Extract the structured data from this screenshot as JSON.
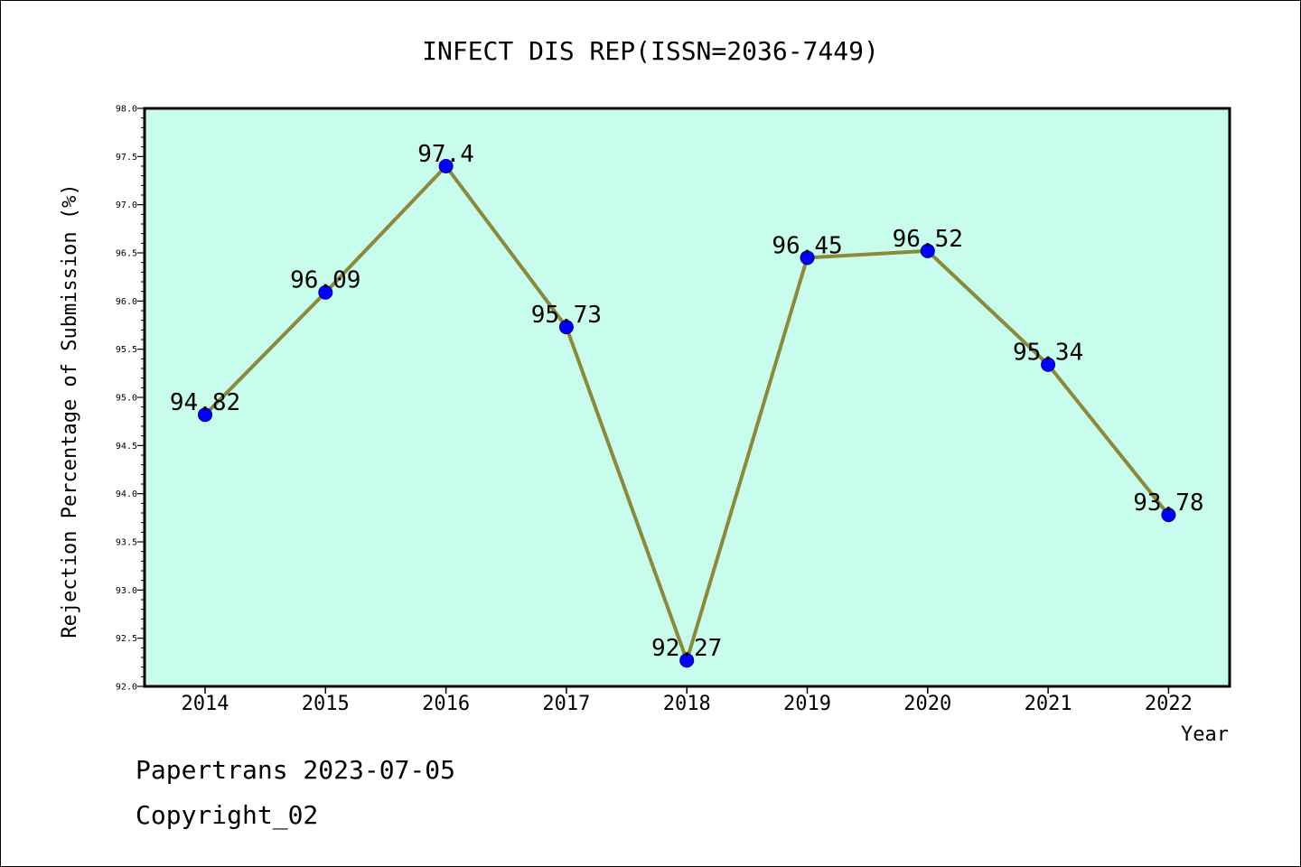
{
  "chart_data": {
    "type": "line",
    "title": "INFECT DIS REP(ISSN=2036-7449)",
    "xlabel": "Year",
    "ylabel": "Rejection Percentage of Submission (%)",
    "categories": [
      "2014",
      "2015",
      "2016",
      "2017",
      "2018",
      "2019",
      "2020",
      "2021",
      "2022"
    ],
    "series": [
      {
        "values": [
          94.82,
          96.09,
          97.4,
          95.73,
          92.27,
          96.45,
          96.52,
          95.34,
          93.78
        ],
        "labels": [
          "94.82",
          "96.09",
          "97.4",
          "95.73",
          "92.27",
          "96.45",
          "96.52",
          "95.34",
          "93.78"
        ]
      }
    ],
    "ylim": [
      92.0,
      98.0
    ],
    "yticks": [
      "92.0",
      "92.5",
      "93.0",
      "93.5",
      "94.0",
      "94.5",
      "95.0",
      "95.5",
      "96.0",
      "96.5",
      "97.0",
      "97.5",
      "98.0"
    ],
    "grid": false,
    "colors": {
      "plot_background": "#c8fcec",
      "line": "#8b8a3a",
      "marker": "#0000ff",
      "marker_edge": "#000080"
    }
  },
  "footer": {
    "line1": "Papertrans 2023-07-05",
    "line2": "Copyright_02"
  }
}
